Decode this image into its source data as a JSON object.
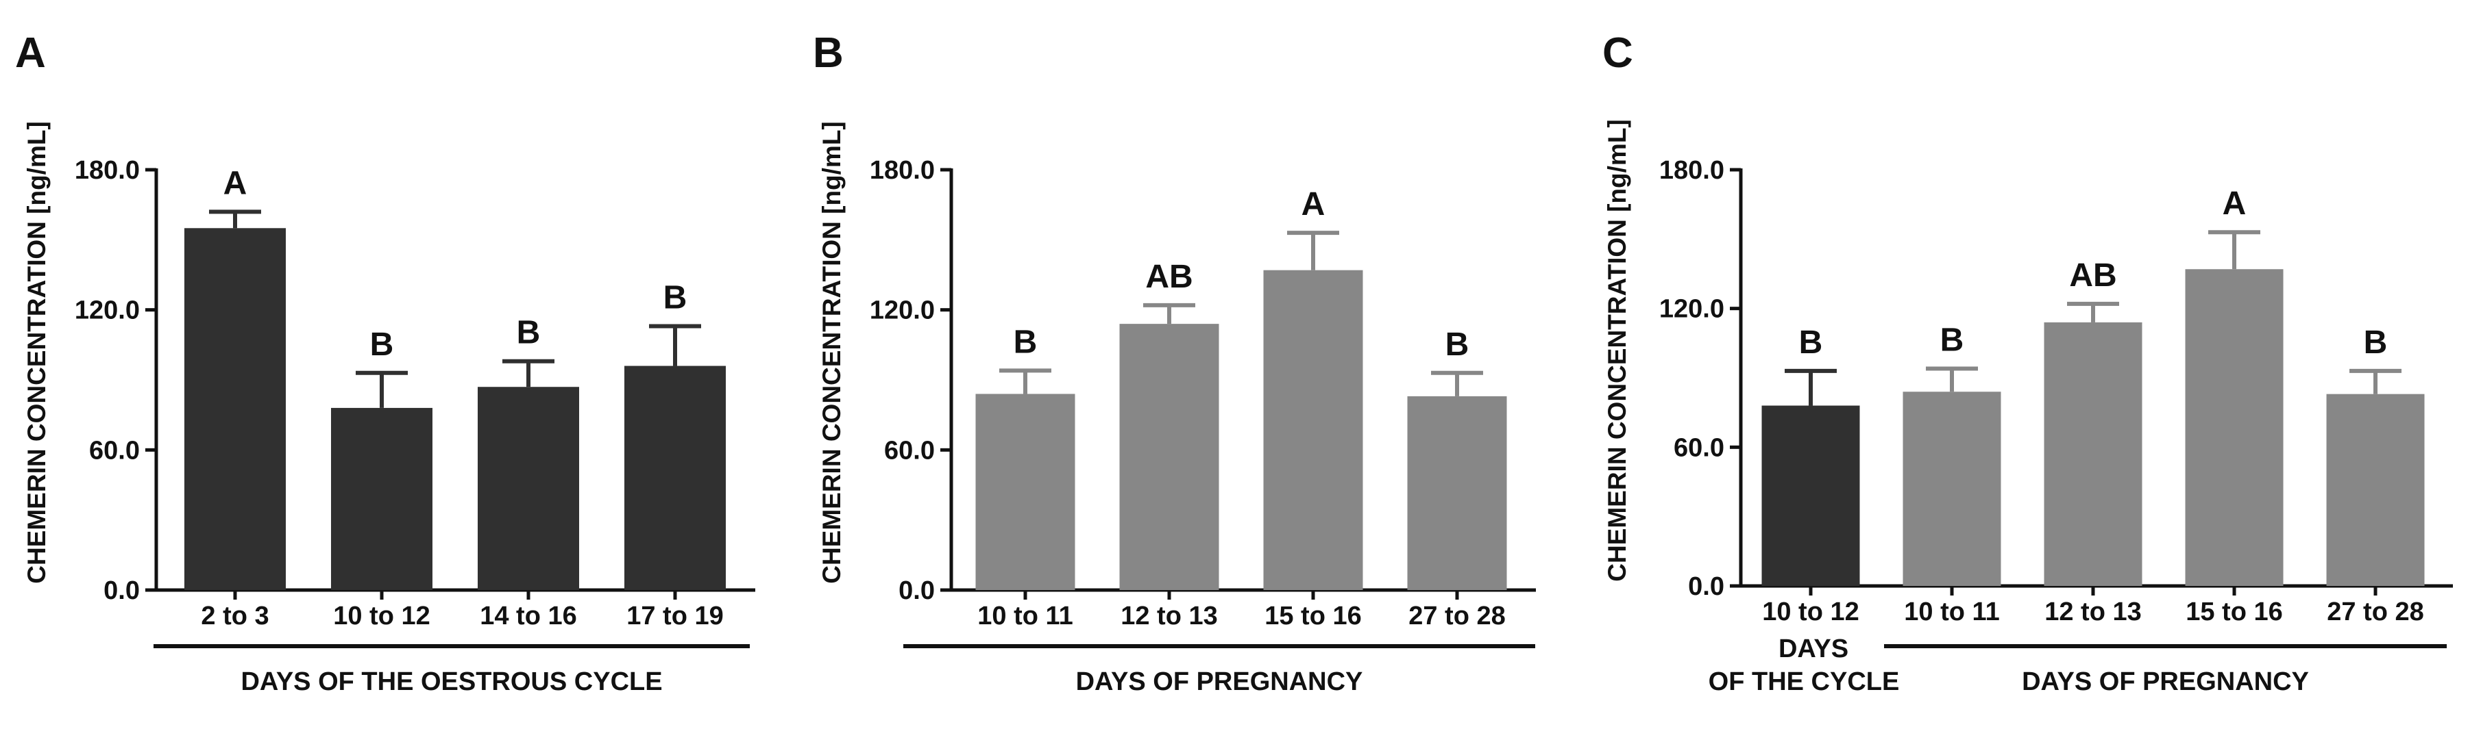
{
  "colors": {
    "dark": "#303030",
    "gray": "#878787",
    "ink": "#111111"
  },
  "chart_data": [
    {
      "type": "bar",
      "panel": "A",
      "ylabel": "CHEMERIN CONCENTRATION [ng/mL]",
      "ylim": [
        0,
        180
      ],
      "yticks": [
        0,
        60,
        120,
        180
      ],
      "ytick_labels": [
        "0.0",
        "60.0",
        "120.0",
        "180.0"
      ],
      "categories": [
        "2 to 3",
        "10 to 12",
        "14 to 16",
        "17 to 19"
      ],
      "values": [
        155,
        78,
        87,
        96
      ],
      "errors": [
        7,
        15,
        11,
        17
      ],
      "significance": [
        "A",
        "B",
        "B",
        "B"
      ],
      "bar_colors": [
        "dark",
        "dark",
        "dark",
        "dark"
      ],
      "groups": [
        {
          "label_lines": [
            "DAYS OF THE OESTROUS CYCLE"
          ],
          "start": 0,
          "end": 3
        }
      ]
    },
    {
      "type": "bar",
      "panel": "B",
      "ylabel": "CHEMERIN CONCENTRATION [ng/mL]",
      "ylim": [
        0,
        180
      ],
      "yticks": [
        0,
        60,
        120,
        180
      ],
      "ytick_labels": [
        "0.0",
        "60.0",
        "120.0",
        "180.0"
      ],
      "categories": [
        "10 to 11",
        "12 to 13",
        "15 to 16",
        "27 to 28"
      ],
      "values": [
        84,
        114,
        137,
        83
      ],
      "errors": [
        10,
        8,
        16,
        10
      ],
      "significance": [
        "B",
        "AB",
        "A",
        "B"
      ],
      "bar_colors": [
        "gray",
        "gray",
        "gray",
        "gray"
      ],
      "groups": [
        {
          "label_lines": [
            "DAYS OF PREGNANCY"
          ],
          "start": 0,
          "end": 3
        }
      ]
    },
    {
      "type": "bar",
      "panel": "C",
      "ylabel": "CHEMERIN CONCENTRATION [ng/mL]",
      "ylim": [
        0,
        180
      ],
      "yticks": [
        0,
        60,
        120,
        180
      ],
      "ytick_labels": [
        "0.0",
        "60.0",
        "120.0",
        "180.0"
      ],
      "categories": [
        "10 to 12",
        "10 to 11",
        "12 to 13",
        "15 to 16",
        "27 to 28"
      ],
      "values": [
        78,
        84,
        114,
        137,
        83
      ],
      "errors": [
        15,
        10,
        8,
        16,
        10
      ],
      "significance": [
        "B",
        "B",
        "AB",
        "A",
        "B"
      ],
      "bar_colors": [
        "dark",
        "gray",
        "gray",
        "gray",
        "gray"
      ],
      "groups": [
        {
          "label_lines": [
            "DAYS",
            "OF THE CYCLE"
          ],
          "start": 0,
          "end": 0,
          "underline": false
        },
        {
          "label_lines": [
            "DAYS OF PREGNANCY"
          ],
          "start": 1,
          "end": 4,
          "underline": true
        }
      ]
    }
  ]
}
